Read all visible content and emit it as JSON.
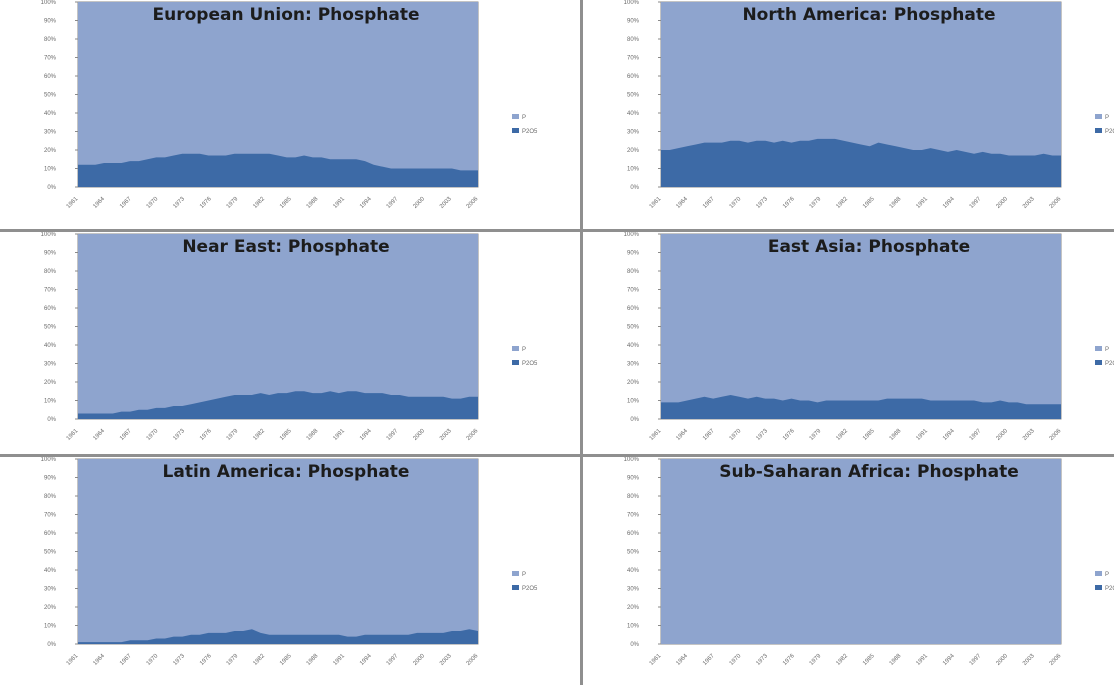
{
  "colors": {
    "upper_area": "#8ea4ce",
    "lower_area": "#3d6aa6",
    "plot_frame": "#8a8a8a"
  },
  "chart_data": [
    {
      "type": "area",
      "title": "European Union: Phosphate",
      "ylim": [
        0,
        100
      ],
      "yticks": [
        "100%",
        "90%",
        "80%",
        "70%",
        "60%",
        "50%",
        "40%",
        "30%",
        "20%",
        "10%",
        "0%"
      ],
      "xticks": [
        "1961",
        "1964",
        "1967",
        "1970",
        "1973",
        "1976",
        "1979",
        "1982",
        "1985",
        "1988",
        "1991",
        "1994",
        "1997",
        "2000",
        "2003",
        "2006"
      ],
      "legend_position": "right",
      "series": [
        {
          "name": "P",
          "values": [
            100,
            100,
            100,
            100,
            100,
            100,
            100,
            100,
            100,
            100,
            100,
            100,
            100,
            100,
            100,
            100,
            100,
            100,
            100,
            100,
            100,
            100,
            100,
            100,
            100,
            100,
            100,
            100,
            100,
            100,
            100,
            100,
            100,
            100,
            100,
            100,
            100,
            100,
            100,
            100,
            100,
            100,
            100,
            100,
            100,
            100,
            100
          ]
        },
        {
          "name": "P2O5",
          "values": [
            12,
            12,
            12,
            13,
            13,
            13,
            14,
            14,
            15,
            16,
            16,
            17,
            18,
            18,
            18,
            17,
            17,
            17,
            18,
            18,
            18,
            18,
            18,
            17,
            16,
            16,
            17,
            16,
            16,
            15,
            15,
            15,
            15,
            14,
            12,
            11,
            10,
            10,
            10,
            10,
            10,
            10,
            10,
            10,
            9,
            9,
            9
          ]
        }
      ]
    },
    {
      "type": "area",
      "title": "North America: Phosphate",
      "ylim": [
        0,
        100
      ],
      "yticks": [
        "100%",
        "90%",
        "80%",
        "70%",
        "60%",
        "50%",
        "40%",
        "30%",
        "20%",
        "10%",
        "0%"
      ],
      "xticks": [
        "1961",
        "1964",
        "1967",
        "1970",
        "1973",
        "1976",
        "1979",
        "1982",
        "1985",
        "1988",
        "1991",
        "1994",
        "1997",
        "2000",
        "2003",
        "2006"
      ],
      "legend_position": "right",
      "series": [
        {
          "name": "P",
          "values": [
            100,
            100,
            100,
            100,
            100,
            100,
            100,
            100,
            100,
            100,
            100,
            100,
            100,
            100,
            100,
            100,
            100,
            100,
            100,
            100,
            100,
            100,
            100,
            100,
            100,
            100,
            100,
            100,
            100,
            100,
            100,
            100,
            100,
            100,
            100,
            100,
            100,
            100,
            100,
            100,
            100,
            100,
            100,
            100,
            100,
            100,
            100
          ]
        },
        {
          "name": "P2O5",
          "values": [
            20,
            20,
            21,
            22,
            23,
            24,
            24,
            24,
            25,
            25,
            24,
            25,
            25,
            24,
            25,
            24,
            25,
            25,
            26,
            26,
            26,
            25,
            24,
            23,
            22,
            24,
            23,
            22,
            21,
            20,
            20,
            21,
            20,
            19,
            20,
            19,
            18,
            19,
            18,
            18,
            17,
            17,
            17,
            17,
            18,
            17,
            17
          ]
        }
      ]
    },
    {
      "type": "area",
      "title": "Near East: Phosphate",
      "ylim": [
        0,
        100
      ],
      "yticks": [
        "100%",
        "90%",
        "80%",
        "70%",
        "60%",
        "50%",
        "40%",
        "30%",
        "20%",
        "10%",
        "0%"
      ],
      "xticks": [
        "1961",
        "1964",
        "1967",
        "1970",
        "1973",
        "1976",
        "1979",
        "1982",
        "1985",
        "1988",
        "1991",
        "1994",
        "1997",
        "2000",
        "2003",
        "2006"
      ],
      "legend_position": "right",
      "series": [
        {
          "name": "P",
          "values": [
            100,
            100,
            100,
            100,
            100,
            100,
            100,
            100,
            100,
            100,
            100,
            100,
            100,
            100,
            100,
            100,
            100,
            100,
            100,
            100,
            100,
            100,
            100,
            100,
            100,
            100,
            100,
            100,
            100,
            100,
            100,
            100,
            100,
            100,
            100,
            100,
            100,
            100,
            100,
            100,
            100,
            100,
            100,
            100,
            100,
            100,
            100
          ]
        },
        {
          "name": "P2O5",
          "values": [
            3,
            3,
            3,
            3,
            3,
            4,
            4,
            5,
            5,
            6,
            6,
            7,
            7,
            8,
            9,
            10,
            11,
            12,
            13,
            13,
            13,
            14,
            13,
            14,
            14,
            15,
            15,
            14,
            14,
            15,
            14,
            15,
            15,
            14,
            14,
            14,
            13,
            13,
            12,
            12,
            12,
            12,
            12,
            11,
            11,
            12,
            12
          ]
        }
      ]
    },
    {
      "type": "area",
      "title": "East Asia: Phosphate",
      "ylim": [
        0,
        100
      ],
      "yticks": [
        "100%",
        "90%",
        "80%",
        "70%",
        "60%",
        "50%",
        "40%",
        "30%",
        "20%",
        "10%",
        "0%"
      ],
      "xticks": [
        "1961",
        "1964",
        "1967",
        "1970",
        "1973",
        "1976",
        "1979",
        "1982",
        "1985",
        "1988",
        "1991",
        "1994",
        "1997",
        "2000",
        "2003",
        "2006"
      ],
      "legend_position": "right",
      "series": [
        {
          "name": "P",
          "values": [
            100,
            100,
            100,
            100,
            100,
            100,
            100,
            100,
            100,
            100,
            100,
            100,
            100,
            100,
            100,
            100,
            100,
            100,
            100,
            100,
            100,
            100,
            100,
            100,
            100,
            100,
            100,
            100,
            100,
            100,
            100,
            100,
            100,
            100,
            100,
            100,
            100,
            100,
            100,
            100,
            100,
            100,
            100,
            100,
            100,
            100,
            100
          ]
        },
        {
          "name": "P2O5",
          "values": [
            9,
            9,
            9,
            10,
            11,
            12,
            11,
            12,
            13,
            12,
            11,
            12,
            11,
            11,
            10,
            11,
            10,
            10,
            9,
            10,
            10,
            10,
            10,
            10,
            10,
            10,
            11,
            11,
            11,
            11,
            11,
            10,
            10,
            10,
            10,
            10,
            10,
            9,
            9,
            10,
            9,
            9,
            8,
            8,
            8,
            8,
            8
          ]
        }
      ]
    },
    {
      "type": "area",
      "title": "Latin America: Phosphate",
      "ylim": [
        0,
        100
      ],
      "yticks": [
        "100%",
        "90%",
        "80%",
        "70%",
        "60%",
        "50%",
        "40%",
        "30%",
        "20%",
        "10%",
        "0%"
      ],
      "xticks": [
        "1961",
        "1964",
        "1967",
        "1970",
        "1973",
        "1976",
        "1979",
        "1982",
        "1985",
        "1988",
        "1991",
        "1994",
        "1997",
        "2000",
        "2003",
        "2006"
      ],
      "legend_position": "right",
      "series": [
        {
          "name": "P",
          "values": [
            100,
            100,
            100,
            100,
            100,
            100,
            100,
            100,
            100,
            100,
            100,
            100,
            100,
            100,
            100,
            100,
            100,
            100,
            100,
            100,
            100,
            100,
            100,
            100,
            100,
            100,
            100,
            100,
            100,
            100,
            100,
            100,
            100,
            100,
            100,
            100,
            100,
            100,
            100,
            100,
            100,
            100,
            100,
            100,
            100,
            100,
            100
          ]
        },
        {
          "name": "P2O5",
          "values": [
            1,
            1,
            1,
            1,
            1,
            1,
            2,
            2,
            2,
            3,
            3,
            4,
            4,
            5,
            5,
            6,
            6,
            6,
            7,
            7,
            8,
            6,
            5,
            5,
            5,
            5,
            5,
            5,
            5,
            5,
            5,
            4,
            4,
            5,
            5,
            5,
            5,
            5,
            5,
            6,
            6,
            6,
            6,
            7,
            7,
            8,
            7
          ]
        }
      ]
    },
    {
      "type": "area",
      "title": "Sub-Saharan Africa: Phosphate",
      "ylim": [
        0,
        100
      ],
      "yticks": [
        "100%",
        "90%",
        "80%",
        "70%",
        "60%",
        "50%",
        "40%",
        "30%",
        "20%",
        "10%",
        "0%"
      ],
      "xticks": [
        "1961",
        "1964",
        "1967",
        "1970",
        "1973",
        "1976",
        "1979",
        "1982",
        "1985",
        "1988",
        "1991",
        "1994",
        "1997",
        "2000",
        "2003",
        "2006"
      ],
      "legend_position": "right",
      "series": [
        {
          "name": "P",
          "values": [
            100,
            100,
            100,
            100,
            100,
            100,
            100,
            100,
            100,
            100,
            100,
            100,
            100,
            100,
            100,
            100,
            100,
            100,
            100,
            100,
            100,
            100,
            100,
            100,
            100,
            100,
            100,
            100,
            100,
            100,
            100,
            100,
            100,
            100,
            100,
            100,
            100,
            100,
            100,
            100,
            100,
            100,
            100,
            100,
            100,
            100,
            100
          ]
        },
        {
          "name": "P2O5",
          "values": [
            0,
            0,
            0,
            0,
            0,
            0,
            0,
            0,
            0,
            0,
            0,
            0,
            0,
            0,
            0,
            0,
            0,
            0,
            0,
            0,
            0,
            0,
            0,
            0,
            0,
            0,
            0,
            0,
            0,
            0,
            0,
            0,
            0,
            0,
            0,
            0,
            0,
            0,
            0,
            0,
            0,
            0,
            0,
            0,
            0,
            0,
            0
          ]
        }
      ]
    }
  ]
}
